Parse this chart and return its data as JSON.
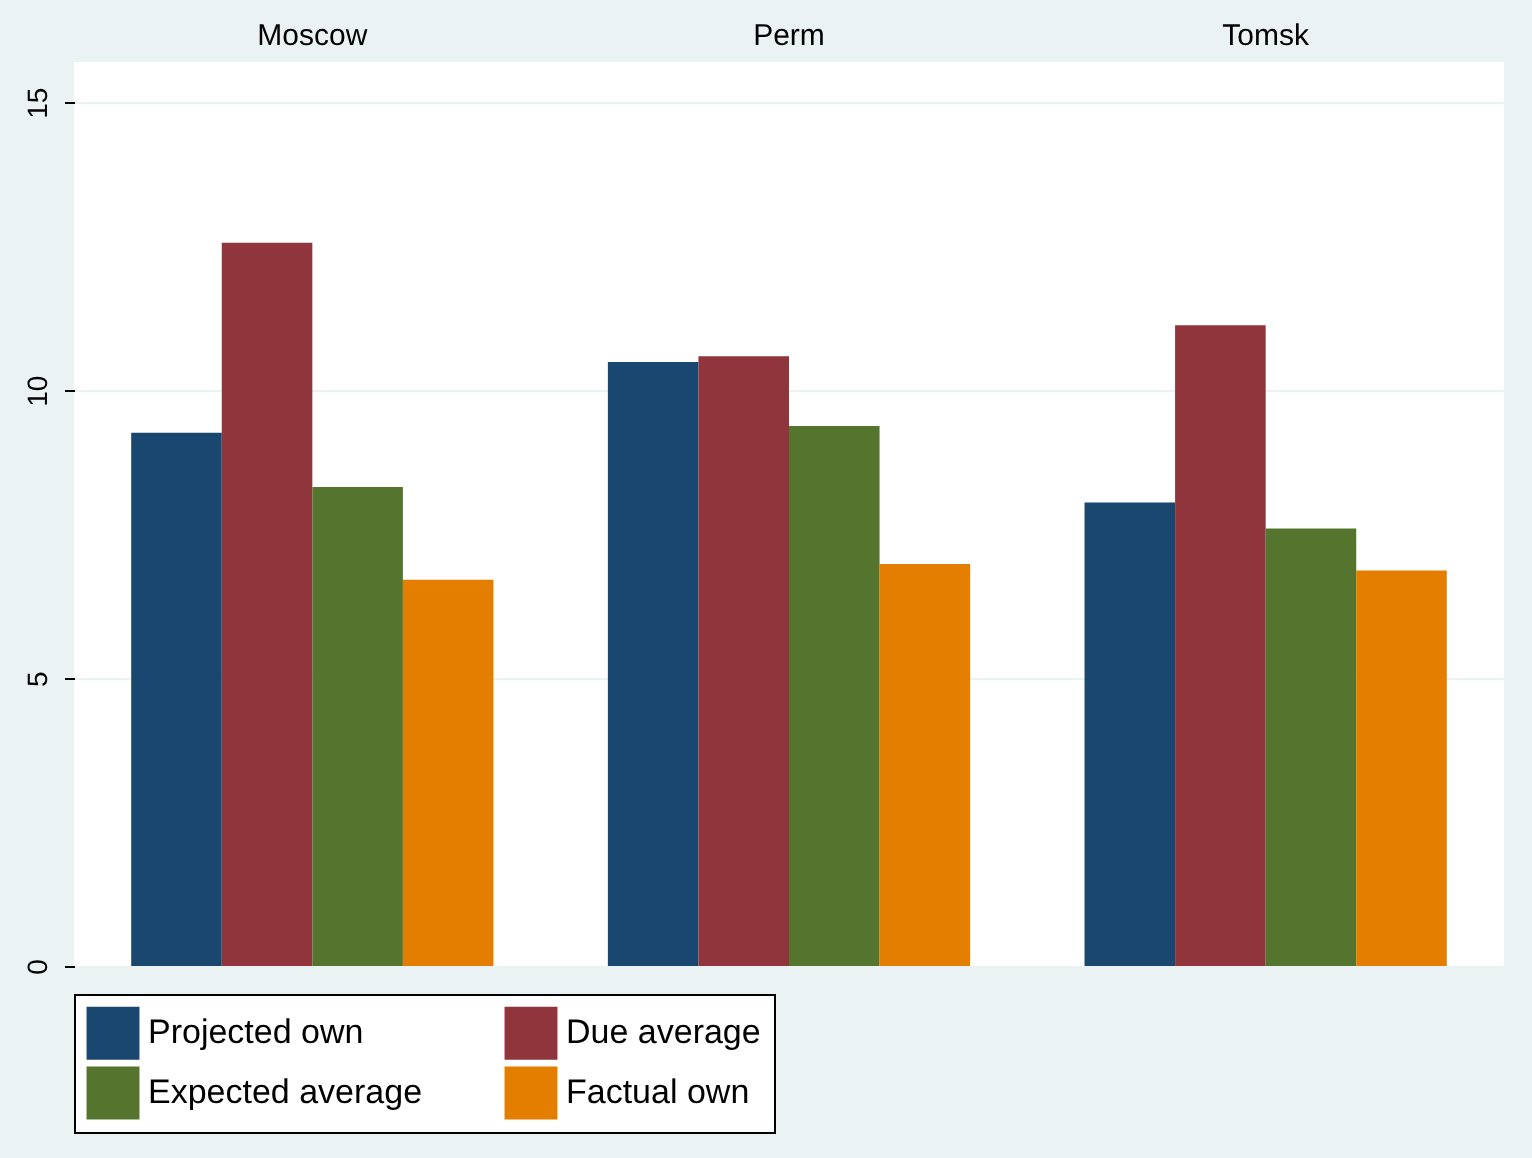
{
  "chart_data": {
    "type": "bar",
    "categories": [
      "Moscow",
      "Perm",
      "Tomsk"
    ],
    "series": [
      {
        "name": "Projected own",
        "color": "#1a476f",
        "values": [
          9.26,
          10.49,
          8.05
        ]
      },
      {
        "name": "Due average",
        "color": "#90353b",
        "values": [
          12.56,
          10.59,
          11.13
        ]
      },
      {
        "name": "Expected average",
        "color": "#55752f",
        "values": [
          8.32,
          9.38,
          7.6
        ]
      },
      {
        "name": "Factual own",
        "color": "#e37e00",
        "values": [
          6.71,
          6.98,
          6.87
        ]
      }
    ],
    "ylim": [
      0,
      15.7
    ],
    "yticks": [
      0,
      5,
      10,
      15
    ],
    "grid": "y",
    "legend": "bottom"
  }
}
